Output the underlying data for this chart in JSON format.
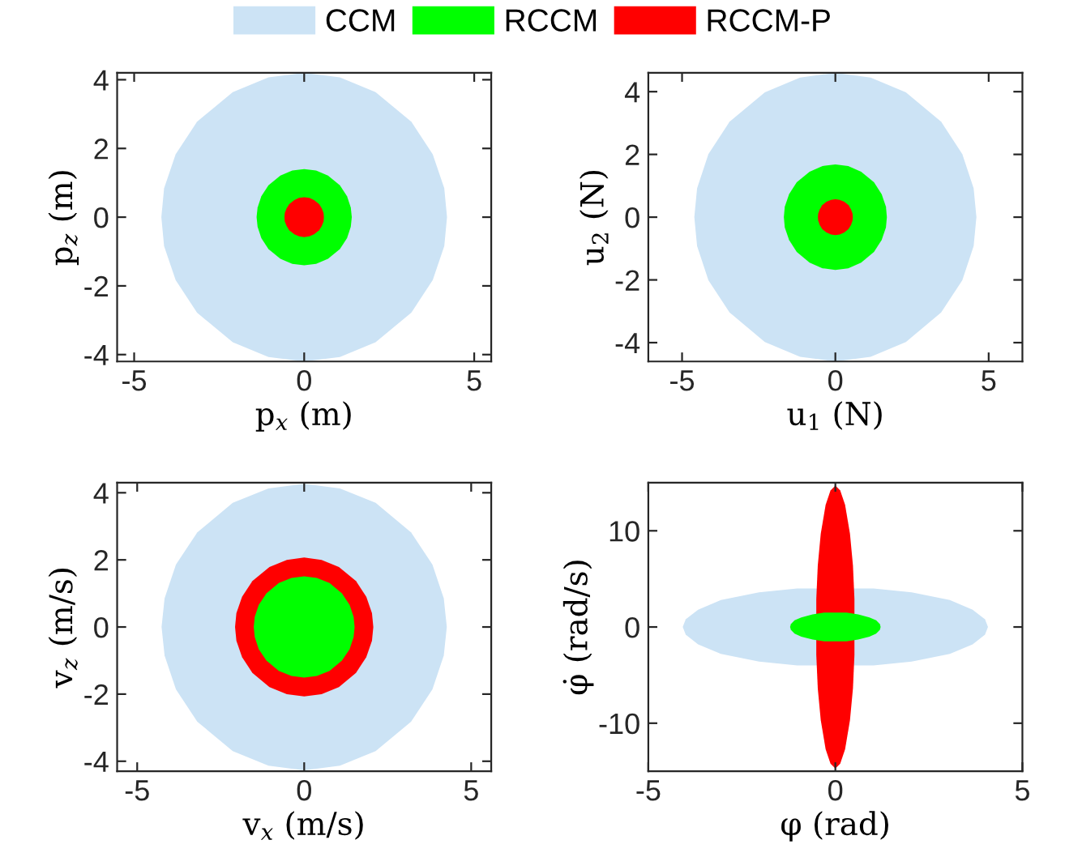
{
  "chart_data": [
    {
      "type": "area",
      "xlabel": "p$_{x}$ (m)",
      "ylabel": "p$_{z}$ (m)",
      "xlim": [
        -5.5,
        5.5
      ],
      "ylim": [
        -4.2,
        4.2
      ],
      "xticks": [
        -5,
        0,
        5
      ],
      "yticks": [
        -4,
        -2,
        0,
        2,
        4
      ],
      "grid": false,
      "legend": "top",
      "series": [
        {
          "name": "CCM",
          "color": "#cce3f5",
          "x": [
            -4.2,
            -4.12,
            -3.78,
            -3.15,
            -2.1,
            -1.05,
            0,
            1.05,
            2.1,
            3.15,
            3.78,
            4.12,
            4.2,
            4.12,
            3.78,
            3.15,
            2.1,
            1.05,
            0,
            -1.05,
            -2.1,
            -3.15,
            -3.78,
            -4.12
          ],
          "values": [
            0,
            0.84,
            1.83,
            2.78,
            3.64,
            4.07,
            4.2,
            4.07,
            3.64,
            2.78,
            1.83,
            0.84,
            0,
            -0.84,
            -1.83,
            -2.78,
            -3.64,
            -4.07,
            -4.2,
            -4.07,
            -3.64,
            -2.78,
            -1.83,
            -0.84
          ]
        },
        {
          "name": "RCCM",
          "color": "#00ff00",
          "x": [
            -1.4,
            -1.37,
            -1.26,
            -1.05,
            -0.7,
            -0.35,
            0,
            0.35,
            0.7,
            1.05,
            1.26,
            1.37,
            1.4,
            1.37,
            1.26,
            1.05,
            0.7,
            0.35,
            0,
            -0.35,
            -0.7,
            -1.05,
            -1.26,
            -1.37
          ],
          "values": [
            0,
            0.28,
            0.61,
            0.93,
            1.21,
            1.36,
            1.4,
            1.36,
            1.21,
            0.93,
            0.61,
            0.28,
            0,
            -0.28,
            -0.61,
            -0.93,
            -1.21,
            -1.36,
            -1.4,
            -1.36,
            -1.21,
            -0.93,
            -0.61,
            -0.28
          ]
        },
        {
          "name": "RCCM-P",
          "color": "#ff0000",
          "x": [
            -0.58,
            -0.57,
            -0.52,
            -0.44,
            -0.29,
            -0.15,
            0,
            0.15,
            0.29,
            0.44,
            0.52,
            0.57,
            0.58,
            0.57,
            0.52,
            0.44,
            0.29,
            0.15,
            0,
            -0.15,
            -0.29,
            -0.44,
            -0.52,
            -0.57
          ],
          "values": [
            0,
            0.12,
            0.25,
            0.38,
            0.5,
            0.56,
            0.58,
            0.56,
            0.5,
            0.38,
            0.25,
            0.12,
            0,
            -0.12,
            -0.25,
            -0.38,
            -0.5,
            -0.56,
            -0.58,
            -0.56,
            -0.5,
            -0.38,
            -0.25,
            -0.12
          ]
        }
      ]
    },
    {
      "type": "area",
      "xlabel": "u$_{1}$ (N)",
      "ylabel": "u$_{2}$ (N)",
      "xlim": [
        -6.1,
        6.1
      ],
      "ylim": [
        -4.6,
        4.6
      ],
      "xticks": [
        -5,
        0,
        5
      ],
      "yticks": [
        -4,
        -2,
        0,
        2,
        4
      ],
      "grid": false,
      "series": [
        {
          "color": "#cce3f5",
          "x": [
            -4.6,
            -4.51,
            -4.14,
            -3.45,
            -2.3,
            -1.15,
            0,
            1.15,
            2.3,
            3.45,
            4.14,
            4.51,
            4.6,
            4.51,
            4.14,
            3.45,
            2.3,
            1.15,
            0,
            -1.15,
            -2.3,
            -3.45,
            -4.14,
            -4.51
          ],
          "values": [
            0,
            0.92,
            2.01,
            3.04,
            3.98,
            4.45,
            4.6,
            4.45,
            3.98,
            3.04,
            2.01,
            0.92,
            0,
            -0.92,
            -2.01,
            -3.04,
            -3.98,
            -4.45,
            -4.6,
            -4.45,
            -3.98,
            -3.04,
            -2.01,
            -0.92
          ]
        },
        {
          "color": "#00ff00",
          "x": [
            -1.68,
            -1.65,
            -1.51,
            -1.26,
            -0.84,
            -0.42,
            0,
            0.42,
            0.84,
            1.26,
            1.51,
            1.65,
            1.68,
            1.65,
            1.51,
            1.26,
            0.84,
            0.42,
            0,
            -0.42,
            -0.84,
            -1.26,
            -1.51,
            -1.65
          ],
          "values": [
            0,
            0.33,
            0.73,
            1.11,
            1.45,
            1.63,
            1.68,
            1.63,
            1.45,
            1.11,
            0.73,
            0.33,
            0,
            -0.33,
            -0.73,
            -1.11,
            -1.45,
            -1.63,
            -1.68,
            -1.63,
            -1.45,
            -1.11,
            -0.73,
            -0.33
          ]
        },
        {
          "color": "#ff0000",
          "x": [
            -0.57,
            -0.56,
            -0.51,
            -0.43,
            -0.29,
            -0.14,
            0,
            0.14,
            0.29,
            0.43,
            0.51,
            0.56,
            0.57,
            0.56,
            0.51,
            0.43,
            0.29,
            0.14,
            0,
            -0.14,
            -0.29,
            -0.43,
            -0.51,
            -0.56
          ],
          "values": [
            0,
            0.11,
            0.25,
            0.38,
            0.49,
            0.55,
            0.57,
            0.55,
            0.49,
            0.38,
            0.25,
            0.11,
            0,
            -0.11,
            -0.25,
            -0.38,
            -0.49,
            -0.55,
            -0.57,
            -0.55,
            -0.49,
            -0.38,
            -0.25,
            -0.11
          ]
        }
      ]
    },
    {
      "type": "area",
      "xlabel": "v$_{x}$ (m/s)",
      "ylabel": "v$_{z}$ (m/s)",
      "xlim": [
        -5.6,
        5.6
      ],
      "ylim": [
        -4.3,
        4.3
      ],
      "xticks": [
        -5,
        0,
        5
      ],
      "yticks": [
        -4,
        -2,
        0,
        2,
        4
      ],
      "grid": false,
      "series": [
        {
          "color": "#cce3f5",
          "x": [
            -4.27,
            -4.18,
            -3.84,
            -3.2,
            -2.14,
            -1.07,
            0,
            1.07,
            2.14,
            3.2,
            3.84,
            4.18,
            4.27,
            4.18,
            3.84,
            3.2,
            2.14,
            1.07,
            0,
            -1.07,
            -2.14,
            -3.2,
            -3.84,
            -4.18
          ],
          "values": [
            0,
            0.85,
            1.86,
            2.82,
            3.7,
            4.13,
            4.27,
            4.13,
            3.7,
            2.82,
            1.86,
            0.85,
            0,
            -0.85,
            -1.86,
            -2.82,
            -3.7,
            -4.13,
            -4.27,
            -4.13,
            -3.7,
            -2.82,
            -1.86,
            -0.85
          ]
        },
        {
          "color": "#ff0000",
          "x": [
            -2.07,
            -2.03,
            -1.86,
            -1.55,
            -1.04,
            -0.52,
            0,
            0.52,
            1.04,
            1.55,
            1.86,
            2.03,
            2.07,
            2.03,
            1.86,
            1.55,
            1.04,
            0.52,
            0,
            -0.52,
            -1.04,
            -1.55,
            -1.86,
            -2.03
          ],
          "values": [
            0,
            0.41,
            0.9,
            1.37,
            1.79,
            2.0,
            2.07,
            2.0,
            1.79,
            1.37,
            0.9,
            0.41,
            0,
            -0.41,
            -0.9,
            -1.37,
            -1.79,
            -2.0,
            -2.07,
            -2.0,
            -1.79,
            -1.37,
            -0.9,
            -0.41
          ]
        },
        {
          "color": "#00ff00",
          "x": [
            -1.51,
            -1.48,
            -1.36,
            -1.13,
            -0.76,
            -0.38,
            0,
            0.38,
            0.76,
            1.13,
            1.36,
            1.48,
            1.51,
            1.48,
            1.36,
            1.13,
            0.76,
            0.38,
            0,
            -0.38,
            -0.76,
            -1.13,
            -1.36,
            -1.48
          ],
          "values": [
            0,
            0.3,
            0.66,
            1.0,
            1.31,
            1.46,
            1.51,
            1.46,
            1.31,
            1.0,
            0.66,
            0.3,
            0,
            -0.3,
            -0.66,
            -1.0,
            -1.31,
            -1.46,
            -1.51,
            -1.46,
            -1.31,
            -1.0,
            -0.66,
            -0.3
          ]
        }
      ]
    },
    {
      "type": "area",
      "xlabel": "φ (rad)",
      "ylabel": "φ̇ (rad/s)",
      "xlim": [
        -5,
        5
      ],
      "ylim": [
        -15,
        15
      ],
      "xticks": [
        -5,
        0,
        5
      ],
      "yticks": [
        -10,
        0,
        10
      ],
      "grid": false,
      "series": [
        {
          "color": "#cce3f5",
          "x": [
            -4.08,
            -4.0,
            -3.67,
            -3.06,
            -2.04,
            -1.02,
            0,
            1.02,
            2.04,
            3.06,
            3.67,
            4.0,
            4.08,
            4.0,
            3.67,
            3.06,
            2.04,
            1.02,
            0,
            -1.02,
            -2.04,
            -3.06,
            -3.67,
            -4.0
          ],
          "values": [
            0,
            0.8,
            1.8,
            2.8,
            3.6,
            4.0,
            null,
            4.0,
            3.6,
            2.8,
            1.8,
            0.8,
            0,
            -0.8,
            -1.8,
            -2.8,
            -3.6,
            -4.0,
            null,
            -4.0,
            -3.6,
            -2.8,
            -1.8,
            -0.8
          ]
        },
        {
          "color": "#ff0000",
          "x": [
            null,
            -0.51,
            -0.47,
            -0.39,
            -0.26,
            -0.13,
            0,
            0.13,
            0.26,
            0.39,
            0.47,
            0.51,
            null,
            0.51,
            0.47,
            0.39,
            0.26,
            0.13,
            0,
            -0.13,
            -0.26,
            -0.39,
            -0.47,
            -0.51
          ],
          "values": [
            null,
            2.9,
            6.4,
            9.7,
            12.7,
            14.2,
            14.7,
            14.2,
            12.7,
            9.7,
            6.4,
            2.9,
            null,
            -2.9,
            -6.4,
            -9.7,
            -12.7,
            -14.2,
            -14.7,
            -14.2,
            -12.7,
            -9.7,
            -6.4,
            -2.9
          ]
        },
        {
          "color": "#00ff00",
          "x": [
            -1.21,
            -1.19,
            -1.09,
            -0.91,
            -0.61,
            -0.3,
            0,
            0.3,
            0.61,
            0.91,
            1.09,
            1.19,
            1.21,
            1.19,
            1.09,
            0.91,
            0.61,
            0.3,
            0,
            -0.3,
            -0.61,
            -0.91,
            -1.09,
            -1.19
          ],
          "values": [
            0,
            0.3,
            0.7,
            1.0,
            1.3,
            1.5,
            1.5,
            1.5,
            1.3,
            1.0,
            0.7,
            0.3,
            0,
            -0.3,
            -0.7,
            -1.0,
            -1.3,
            -1.5,
            -1.5,
            -1.5,
            -1.3,
            -1.0,
            -0.7,
            -0.3
          ]
        }
      ]
    }
  ]
}
